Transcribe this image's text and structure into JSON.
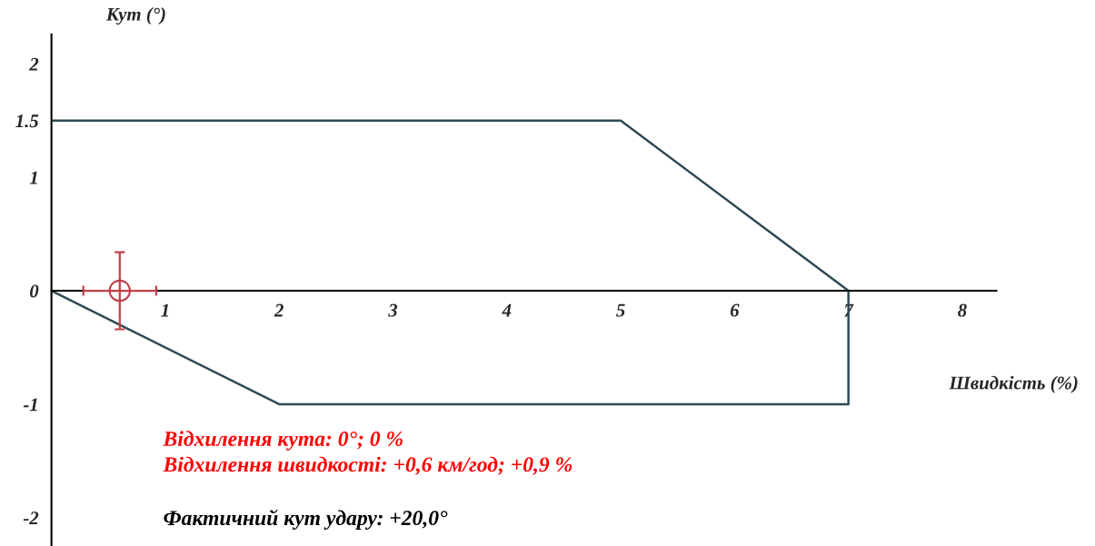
{
  "chart_data": [
    {
      "type": "line",
      "xlabel": "Швидкість (%)",
      "ylabel": "Кут (°)",
      "xlim": [
        0,
        8.3
      ],
      "ylim": [
        -2.25,
        2.26
      ],
      "xticks": [
        1,
        2,
        3,
        4,
        5,
        6,
        7,
        8
      ],
      "yticks": [
        -2,
        -1,
        0,
        1,
        1.5,
        2
      ],
      "grid": false,
      "legend": false,
      "series": [
        {
          "type": "line",
          "color": "#2f4a55",
          "x": [
            0,
            5,
            7,
            7,
            2,
            0
          ],
          "values": [
            1.5,
            1.5,
            0,
            -1,
            -1,
            0
          ]
        },
        {
          "type": "scatter",
          "color": "#c0404a",
          "marker": "circle",
          "x": [
            0.6
          ],
          "values": [
            0
          ],
          "errors": [
            0.34
          ],
          "xerrors": [
            0.32
          ]
        }
      ],
      "annotations": [
        "Відхилення кута: 0°; 0 %",
        "Відхилення швидкості: +0,6 км/год; +0,9 %",
        "Фактичний кут удару: +20,0°"
      ]
    }
  ]
}
